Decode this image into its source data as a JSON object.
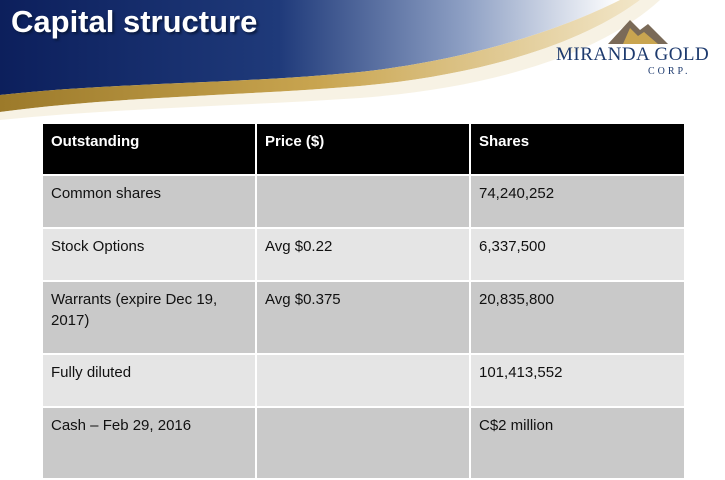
{
  "header": {
    "title": "Capital structure"
  },
  "logo": {
    "name": "MIRANDA GOLD",
    "suffix": "CORP."
  },
  "table": {
    "columns": [
      "Outstanding",
      "Price ($)",
      "Shares"
    ],
    "rows": [
      [
        "Common shares",
        null,
        "74,240,252"
      ],
      [
        "Stock Options",
        "Avg $0.22",
        "6,337,500"
      ],
      [
        "Warrants (expire Dec 19, 2017)",
        "Avg $0.375",
        "20,835,800"
      ],
      [
        "Fully diluted",
        null,
        "101,413,552"
      ],
      [
        "Cash – Feb 29, 2016",
        null,
        "C$2 million"
      ]
    ]
  }
}
